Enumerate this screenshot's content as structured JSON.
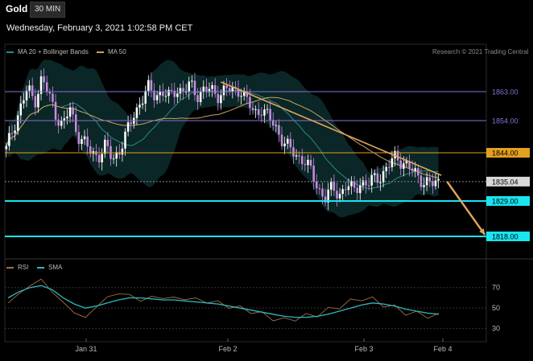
{
  "header": {
    "symbol": "Gold",
    "timeframe": "30 MIN",
    "datetime": "Wednesday, February 3, 2021 1:02:58 PM CET"
  },
  "legend": {
    "bollinger": "MA 20 + Bollinger Bands",
    "ma50": "MA 50",
    "credit": "Research © 2021 Trading Central",
    "rsi": "RSI",
    "sma": "SMA"
  },
  "colors": {
    "background": "#000000",
    "bull": "#ffffff",
    "bear": "#c98be0",
    "band": "#0c2a2a",
    "ma20": "#2a8a88",
    "ma50": "#c9a460",
    "trendline": "#e3a55e",
    "resistance_1863": "#8a6fd6",
    "resistance_1854": "#8a6fd6",
    "pivot_1844": "#e3a020",
    "support": "#18e5f0",
    "rsi": "#a07040",
    "rsi_sma": "#2fb8c0"
  },
  "chart_data": [
    {
      "type": "candlestick",
      "title": "",
      "x_ticks": [
        "Jan 31",
        "Feb 2",
        "Feb 3",
        "Feb 4"
      ],
      "ylim": [
        1812,
        1872
      ],
      "levels": [
        {
          "value": 1863.0,
          "label": "1863.00",
          "kind": "resistance"
        },
        {
          "value": 1854.0,
          "label": "1854.00",
          "kind": "resistance"
        },
        {
          "value": 1844.0,
          "label": "1844.00",
          "kind": "pivot"
        },
        {
          "value": 1835.04,
          "label": "1835.04",
          "kind": "last_price"
        },
        {
          "value": 1829.0,
          "label": "1829.00",
          "kind": "support"
        },
        {
          "value": 1818.0,
          "label": "1818.00",
          "kind": "target"
        }
      ],
      "trendline": {
        "start": {
          "bar": 74,
          "value": 1866
        },
        "end": {
          "bar": 150,
          "value": 1837
        }
      },
      "projection": {
        "start": {
          "bar": 152,
          "value": 1835
        },
        "end": {
          "bar": 165,
          "value": 1818.5
        }
      },
      "candle_path": [
        1845,
        1852,
        1858,
        1864,
        1860,
        1867,
        1862,
        1856,
        1852,
        1858,
        1850,
        1847,
        1844,
        1843,
        1846,
        1842,
        1845,
        1850,
        1856,
        1860,
        1864,
        1862,
        1863,
        1861,
        1864,
        1863,
        1865,
        1862,
        1864,
        1863,
        1862,
        1864,
        1863,
        1864,
        1860,
        1856,
        1858,
        1855,
        1852,
        1848,
        1845,
        1843,
        1842,
        1838,
        1833,
        1830,
        1833,
        1831,
        1834,
        1832,
        1835,
        1834,
        1836,
        1837,
        1840,
        1843,
        1841,
        1839,
        1837,
        1835,
        1834,
        1835
      ],
      "indicators": [
        "MA 20 + Bollinger Bands",
        "MA 50"
      ]
    },
    {
      "type": "line",
      "title": "RSI",
      "ylim": [
        25,
        80
      ],
      "y_ticks": [
        70,
        50,
        30
      ],
      "series": [
        {
          "name": "RSI",
          "values": [
            55,
            64,
            72,
            78,
            66,
            55,
            46,
            40,
            52,
            60,
            65,
            62,
            58,
            60,
            61,
            59,
            60,
            58,
            57,
            55,
            52,
            50,
            47,
            44,
            40,
            38,
            40,
            42,
            44,
            48,
            52,
            56,
            60,
            58,
            54,
            50,
            46,
            44,
            43,
            42
          ]
        },
        {
          "name": "SMA",
          "values": [
            60,
            66,
            70,
            72,
            68,
            60,
            54,
            50,
            52,
            55,
            58,
            60,
            60,
            59,
            58,
            58,
            57,
            56,
            55,
            54,
            52,
            50,
            48,
            46,
            44,
            42,
            41,
            41,
            42,
            44,
            47,
            50,
            53,
            55,
            54,
            52,
            49,
            47,
            45,
            44
          ]
        }
      ]
    }
  ]
}
